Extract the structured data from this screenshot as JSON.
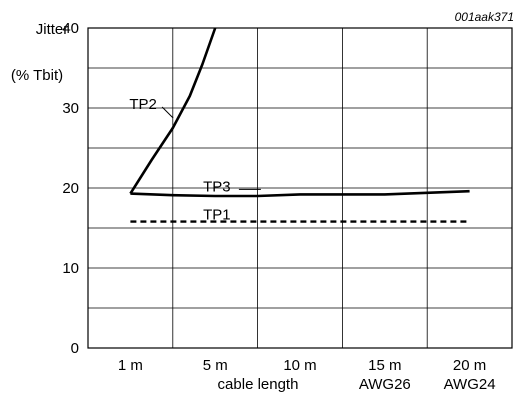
{
  "chart_data": {
    "type": "line",
    "figure_ref": "001aak371",
    "ylabel_line1": "Jitter",
    "ylabel_line2": "(% Tbit)",
    "xlabel": "cable length",
    "ylim": [
      0,
      40
    ],
    "xlim": [
      0,
      5
    ],
    "grid": true,
    "y_ticks": [
      {
        "label": "0",
        "value": 0
      },
      {
        "label": "10",
        "value": 10
      },
      {
        "label": "20",
        "value": 20
      },
      {
        "label": "30",
        "value": 30
      },
      {
        "label": "40",
        "value": 40
      }
    ],
    "x_ticks": [
      {
        "label": "1 m",
        "value": 0.5
      },
      {
        "label": "5 m",
        "value": 1.5
      },
      {
        "label": "10 m",
        "value": 2.5
      },
      {
        "label": "15 m",
        "value": 3.5
      },
      {
        "label": "20 m",
        "value": 4.5
      }
    ],
    "x_sublabels": [
      {
        "label": "AWG26",
        "value": 3.5
      },
      {
        "label": "AWG24",
        "value": 4.5
      }
    ],
    "series": [
      {
        "name": "TP2",
        "style": "solid",
        "color": "#000000",
        "points": [
          [
            0.5,
            19.3
          ],
          [
            0.75,
            23.5
          ],
          [
            1.0,
            27.5
          ],
          [
            1.2,
            31.5
          ],
          [
            1.35,
            35.5
          ],
          [
            1.5,
            40
          ]
        ],
        "label_at": [
          0.65,
          30.5
        ]
      },
      {
        "name": "TP3",
        "style": "solid",
        "color": "#000000",
        "points": [
          [
            0.5,
            19.3
          ],
          [
            1.0,
            19.1
          ],
          [
            1.5,
            19.0
          ],
          [
            2.0,
            19.0
          ],
          [
            2.5,
            19.2
          ],
          [
            3.0,
            19.2
          ],
          [
            3.5,
            19.2
          ],
          [
            4.0,
            19.4
          ],
          [
            4.5,
            19.6
          ]
        ],
        "label_at": [
          1.52,
          20.2
        ]
      },
      {
        "name": "TP1",
        "style": "dashed",
        "color": "#000000",
        "points": [
          [
            0.5,
            15.8
          ],
          [
            4.5,
            15.8
          ]
        ],
        "label_at": [
          1.52,
          16.7
        ]
      }
    ]
  }
}
